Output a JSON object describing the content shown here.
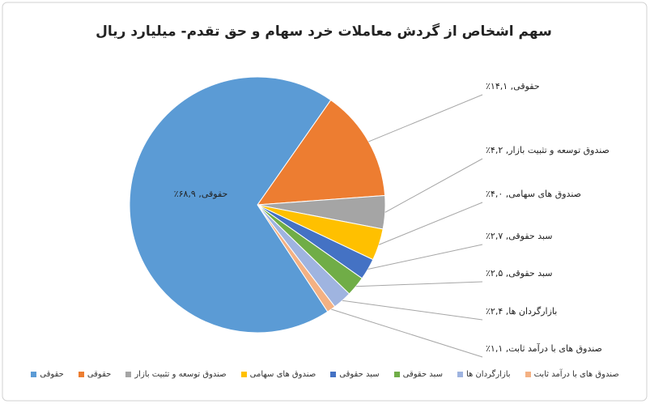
{
  "chart_data": {
    "type": "pie",
    "title": "سهم اشخاص از گردش معاملات خرد سهام و حق تقدم- میلیارد ریال",
    "categories": [
      "حقوقی",
      "حقوقی",
      "صندوق توسعه و تثبیت بازار",
      "صندوق های سهامی",
      "سبد حقوقی",
      "سبد حقوقی",
      "بازارگردان ها",
      "صندوق های با درآمد ثابت"
    ],
    "values": [
      68.9,
      14.1,
      4.2,
      4.0,
      2.7,
      2.5,
      2.4,
      1.1
    ],
    "value_labels": [
      "حقوقی, ۶۸,۹٪",
      "حقوقی, ۱۴,۱٪",
      "صندوق توسعه و تثبیت بازار, ۴,۲٪",
      "صندوق های سهامی, ۴,۰٪",
      "سبد حقوقی, ۲,۷٪",
      "سبد حقوقی, ۲,۵٪",
      "بازارگردان ها, ۲,۴٪",
      "صندوق های با درآمد ثابت, ۱,۱٪"
    ],
    "colors": [
      "#5b9bd5",
      "#ed7d31",
      "#a5a5a5",
      "#ffc000",
      "#4472c4",
      "#70ad47",
      "#9fb4e0",
      "#f4b183"
    ],
    "legend": "bottom"
  }
}
